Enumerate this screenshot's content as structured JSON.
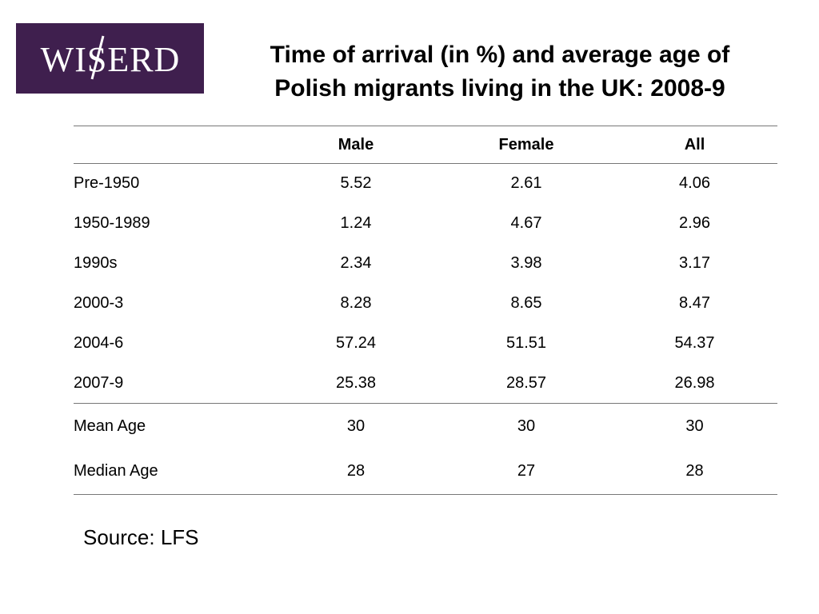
{
  "logo": {
    "text": "WISERD",
    "background": "#3f1f4e",
    "text_color": "#ffffff"
  },
  "title": {
    "line1": "Time of arrival (in %) and average age of",
    "line2": "Polish migrants living in the UK: 2008-9"
  },
  "table": {
    "columns": [
      "",
      "Male",
      "Female",
      "All"
    ],
    "arrival_rows": [
      {
        "label": "Pre-1950",
        "male": "5.52",
        "female": "2.61",
        "all": "4.06"
      },
      {
        "label": "1950-1989",
        "male": "1.24",
        "female": "4.67",
        "all": "2.96"
      },
      {
        "label": "1990s",
        "male": "2.34",
        "female": "3.98",
        "all": "3.17"
      },
      {
        "label": "2000-3",
        "male": "8.28",
        "female": "8.65",
        "all": "8.47"
      },
      {
        "label": "2004-6",
        "male": "57.24",
        "female": "51.51",
        "all": "54.37"
      },
      {
        "label": "2007-9",
        "male": "25.38",
        "female": "28.57",
        "all": "26.98"
      }
    ],
    "age_rows": [
      {
        "label": "Mean Age",
        "male": "30",
        "female": "30",
        "all": "30"
      },
      {
        "label": "Median Age",
        "male": "28",
        "female": "27",
        "all": "28"
      }
    ]
  },
  "source": "Source: LFS"
}
